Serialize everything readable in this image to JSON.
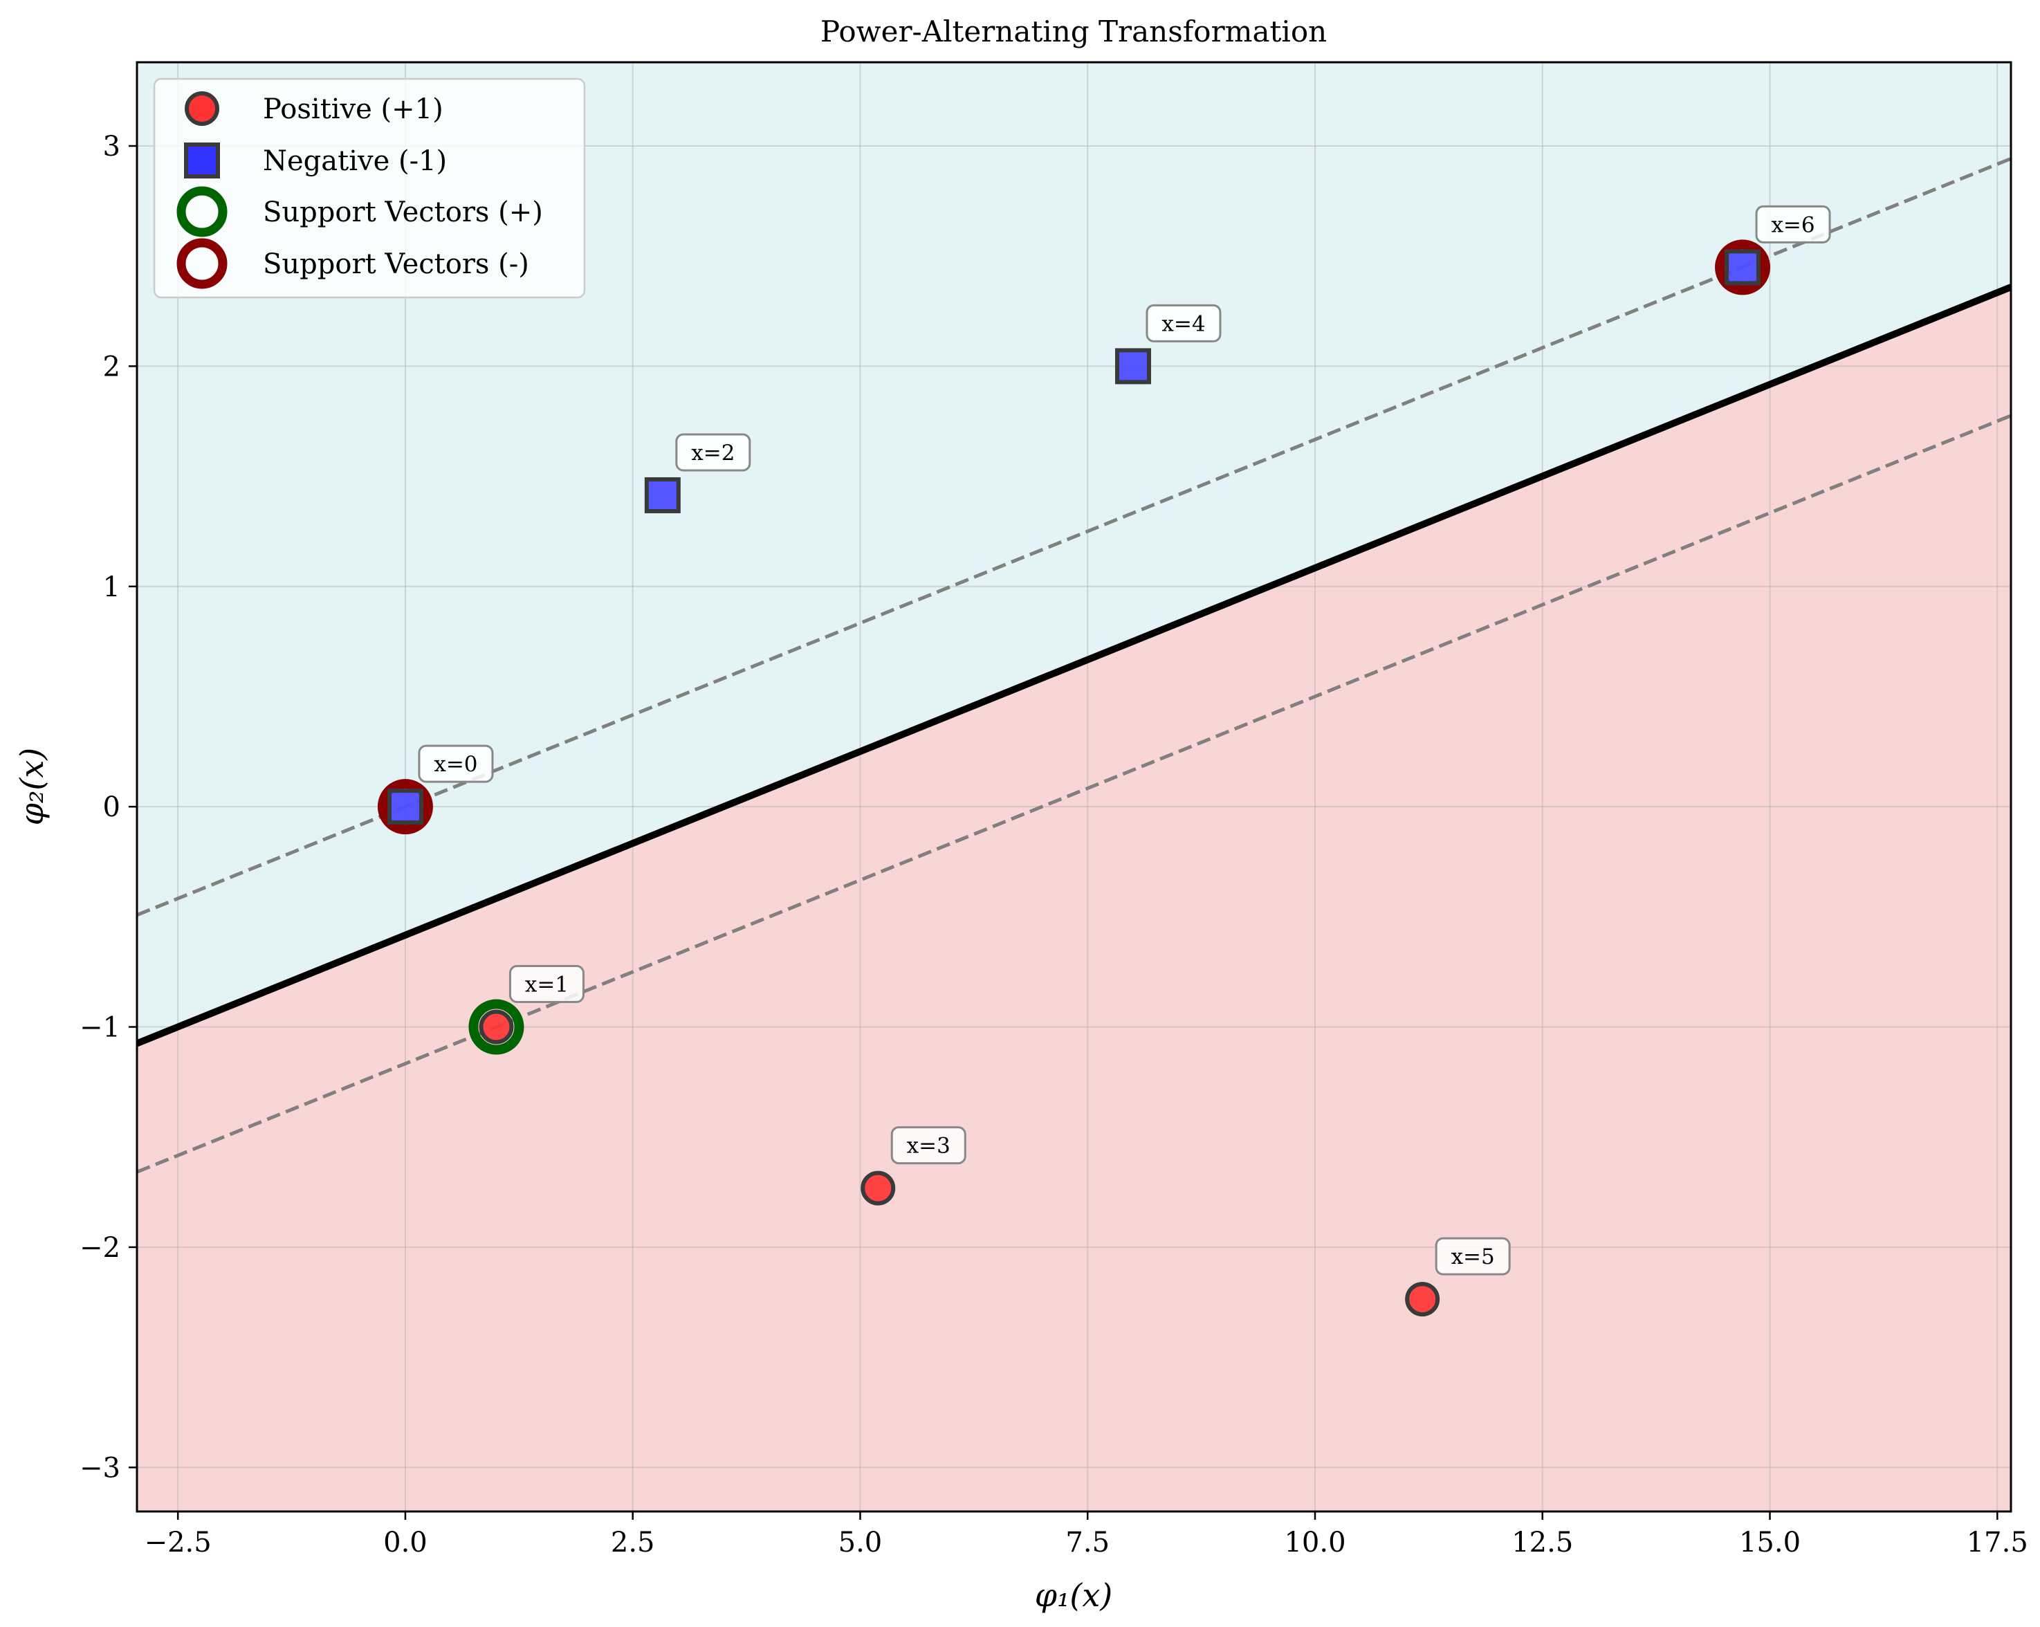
{
  "chart_data": {
    "type": "scatter",
    "title": "Power-Alternating Transformation",
    "xlabel": "φ₁(x)",
    "ylabel": "φ₂(x)",
    "xlim": [
      -2.95,
      17.65
    ],
    "ylim": [
      -3.2,
      3.38
    ],
    "xticks": [
      -2.5,
      0.0,
      2.5,
      5.0,
      7.5,
      10.0,
      12.5,
      15.0,
      17.5
    ],
    "xtick_labels": [
      "−2.5",
      "0.0",
      "2.5",
      "5.0",
      "7.5",
      "10.0",
      "12.5",
      "15.0",
      "17.5"
    ],
    "yticks": [
      -3,
      -2,
      -1,
      0,
      1,
      2,
      3
    ],
    "ytick_labels": [
      "−3",
      "−2",
      "−1",
      "0",
      "1",
      "2",
      "3"
    ],
    "grid": true,
    "legend_position": "top-left",
    "legend": [
      {
        "label": "Positive (+1)",
        "marker": "circle",
        "color": "#ff0000"
      },
      {
        "label": "Negative (-1)",
        "marker": "square",
        "color": "#0000ff"
      },
      {
        "label": "Support Vectors (+)",
        "marker": "ring",
        "color": "#006400"
      },
      {
        "label": "Support Vectors (-)",
        "marker": "ring",
        "color": "#8b0000"
      }
    ],
    "series": [
      {
        "name": "Positive (+1)",
        "color": "#ff3333",
        "points": [
          {
            "x": 1.0,
            "y": -1.0,
            "label": "x=1"
          },
          {
            "x": 5.196,
            "y": -1.732,
            "label": "x=3"
          },
          {
            "x": 11.18,
            "y": -2.236,
            "label": "x=5"
          }
        ]
      },
      {
        "name": "Negative (-1)",
        "color": "#4d4dff",
        "points": [
          {
            "x": 0.0,
            "y": 0.0,
            "label": "x=0"
          },
          {
            "x": 2.828,
            "y": 1.414,
            "label": "x=2"
          },
          {
            "x": 8.0,
            "y": 2.0,
            "label": "x=4"
          },
          {
            "x": 14.7,
            "y": 2.449,
            "label": "x=6"
          }
        ]
      },
      {
        "name": "Support Vectors (+)",
        "color": "#006400",
        "points": [
          {
            "x": 1.0,
            "y": -1.0
          }
        ]
      },
      {
        "name": "Support Vectors (-)",
        "color": "#8b0000",
        "points": [
          {
            "x": 0.0,
            "y": 0.0
          },
          {
            "x": 14.7,
            "y": 2.449
          }
        ]
      }
    ],
    "decision_boundary": {
      "slope": 0.1667,
      "intercept": -0.583
    },
    "margins": [
      {
        "slope": 0.1667,
        "intercept": 0.0
      },
      {
        "slope": 0.1667,
        "intercept": -1.1667
      }
    ],
    "region_colors": {
      "upper": "#e4f3f5",
      "lower": "#f9d6d6"
    }
  }
}
